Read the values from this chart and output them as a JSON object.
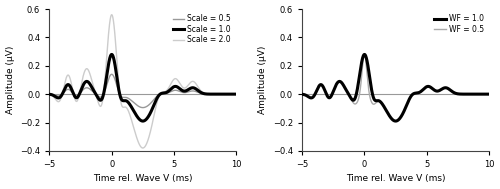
{
  "xlim": [
    -5,
    10
  ],
  "ylim": [
    -0.4,
    0.6
  ],
  "xlabel": "Time rel. Wave V (ms)",
  "ylabel": "Amplitude (μV)",
  "yticks": [
    -0.4,
    -0.2,
    0.0,
    0.2,
    0.4,
    0.6
  ],
  "xticks": [
    -5,
    0,
    5,
    10
  ],
  "legend_left": [
    {
      "label": "Scale = 0.5",
      "color": "#999999",
      "lw": 1.0
    },
    {
      "label": "Scale = 1.0",
      "color": "#000000",
      "lw": 2.2
    },
    {
      "label": "Scale = 2.0",
      "color": "#cccccc",
      "lw": 1.0
    }
  ],
  "legend_right": [
    {
      "label": "WF = 1.0",
      "color": "#000000",
      "lw": 2.2
    },
    {
      "label": "WF = 0.5",
      "color": "#aaaaaa",
      "lw": 1.0
    }
  ],
  "background_color": "#ffffff",
  "zero_line_color": "#999999",
  "figsize": [
    5.0,
    1.89
  ],
  "dpi": 100
}
